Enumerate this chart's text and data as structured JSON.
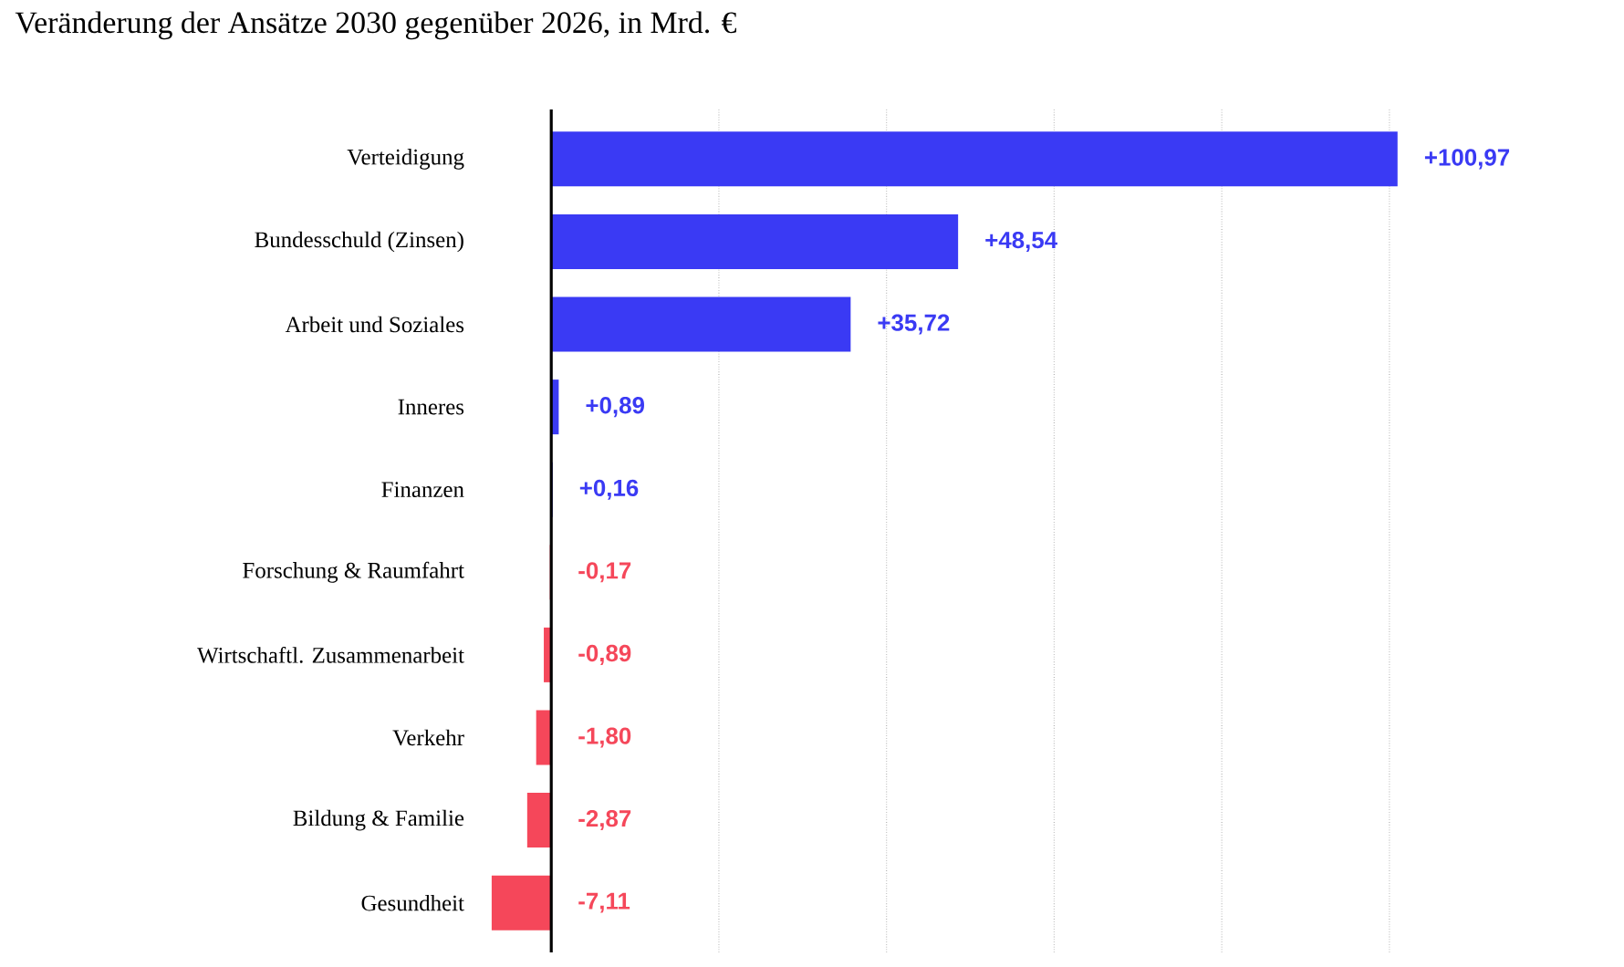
{
  "chart_data": {
    "type": "bar",
    "orientation": "horizontal",
    "title": "Veränderung der Ansätze 2030 gegenüber 2026, in Mrd. €",
    "categories": [
      "Verteidigung",
      "Bundesschuld (Zinsen)",
      "Arbeit und Soziales",
      "Inneres",
      "Finanzen",
      "Forschung & Raumfahrt",
      "Wirtschaftl. Zusammenarbeit",
      "Verkehr",
      "Bildung & Familie",
      "Gesundheit"
    ],
    "values": [
      100.97,
      48.54,
      35.72,
      0.89,
      0.16,
      -0.17,
      -0.89,
      -1.8,
      -2.87,
      -7.11
    ],
    "value_labels": [
      "+100,97",
      "+48,54",
      "+35,72",
      "+0,89",
      "+0,16",
      "-0,17",
      "-0,89",
      "-1,80",
      "-2,87",
      "-7,11"
    ],
    "colors": [
      "#3a3af4",
      "#3a3af4",
      "#3a3af4",
      "#3a3af4",
      "#3a3af4",
      "#f5475a",
      "#f5475a",
      "#f5475a",
      "#f5475a",
      "#f5475a"
    ],
    "xticks": [
      {
        "value": 20,
        "label": null
      },
      {
        "value": 40,
        "label": null
      },
      {
        "value": 60,
        "label": null
      },
      {
        "value": 80,
        "label": null
      },
      {
        "value": 100,
        "label": null
      }
    ],
    "grid": "x",
    "tick_labels": "y",
    "ref_lines": [
      {
        "axis": "x",
        "value": 0,
        "color": "#000000"
      }
    ]
  }
}
